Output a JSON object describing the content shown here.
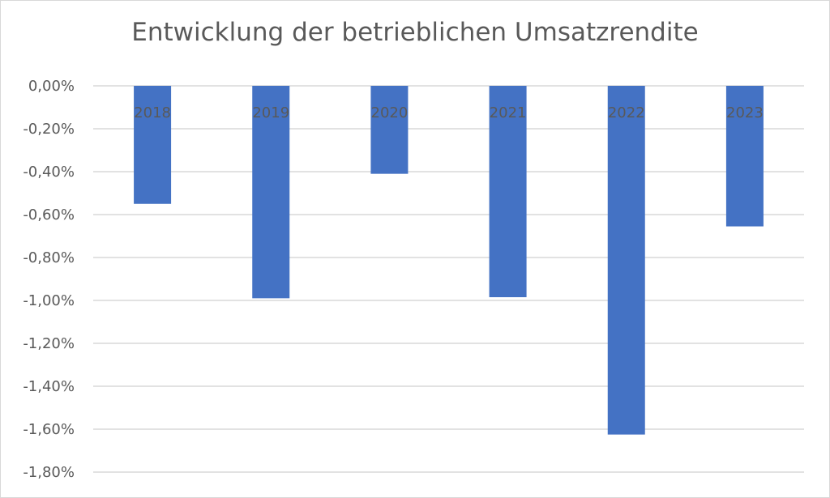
{
  "chart_data": {
    "type": "bar",
    "title": "Entwicklung der betrieblichen Umsatzrendite",
    "xlabel": "",
    "ylabel": "",
    "categories": [
      "2018",
      "2019",
      "2020",
      "2021",
      "2022",
      "2023"
    ],
    "values": [
      -0.55,
      -0.99,
      -0.41,
      -0.985,
      -1.625,
      -0.655
    ],
    "ylim": [
      -1.8,
      0
    ],
    "y_ticks": [
      0,
      -0.2,
      -0.4,
      -0.6,
      -0.8,
      -1.0,
      -1.2,
      -1.4,
      -1.6,
      -1.8
    ],
    "y_tick_labels": [
      "0,00%",
      "-0,20%",
      "-0,40%",
      "-0,60%",
      "-0,80%",
      "-1,00%",
      "-1,20%",
      "-1,40%",
      "-1,60%",
      "-1,80%"
    ],
    "grid": true,
    "legend": "none",
    "bar_color": "#4472C4",
    "grid_color": "#d9d9d9",
    "text_color": "#595959"
  }
}
